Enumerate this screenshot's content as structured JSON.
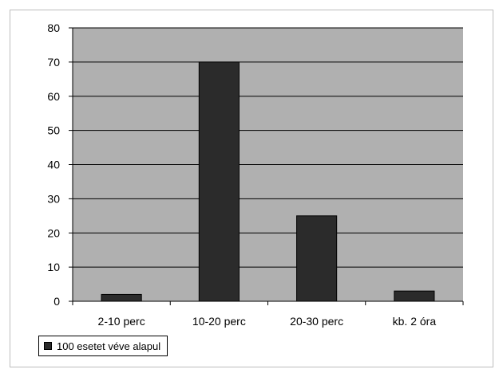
{
  "chart_data": {
    "type": "bar",
    "categories": [
      "2-10 perc",
      "10-20 perc",
      "20-30 perc",
      "kb. 2 óra"
    ],
    "series": [
      {
        "name": "100 esetet véve alapul",
        "values": [
          2,
          70,
          25,
          3
        ]
      }
    ],
    "ylim": [
      0,
      80
    ],
    "yticks": [
      0,
      10,
      20,
      30,
      40,
      50,
      60,
      70,
      80
    ],
    "grid": true,
    "legend_position": "bottom-left",
    "colors": {
      "plot_background": "#b0b0b0",
      "bar_fill": "#2b2b2b",
      "gridline": "#000000",
      "axis": "#000000"
    }
  }
}
